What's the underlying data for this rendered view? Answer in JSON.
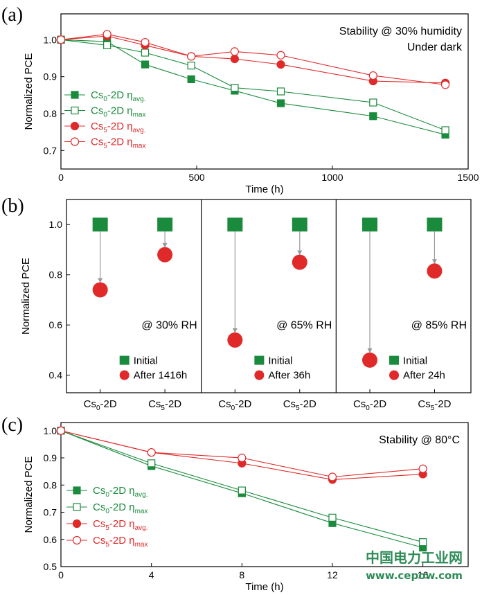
{
  "colors": {
    "green": "#1a8a3c",
    "red": "#e02a2a",
    "axis": "#000000",
    "arrow": "#9a9a9a",
    "watermark": "#2e8b57"
  },
  "watermark": {
    "line1": "中国电力工业网",
    "line2": "www.cepow.com"
  },
  "chart_data": [
    {
      "id": "a",
      "type": "line",
      "panel_label": "(a)",
      "title_lines": [
        "Stability @ 30% humidity",
        "Under dark"
      ],
      "xlabel": "Time (h)",
      "ylabel": "Normalized PCE",
      "xlim": [
        0,
        1500
      ],
      "ylim": [
        0.65,
        1.07
      ],
      "xticks": [
        0,
        500,
        1000,
        1500
      ],
      "yticks": [
        0.7,
        0.8,
        0.9,
        1.0
      ],
      "yticklabels": [
        "0.7",
        "0.8",
        "0.9",
        "1.0"
      ],
      "legend": {
        "position": "left-center"
      },
      "series": [
        {
          "name": "Cs0-2D ηavg.",
          "parts": [
            "Cs",
            "0",
            "-2D η",
            "avg."
          ],
          "color": "green",
          "marker": "square-filled",
          "x": [
            0,
            170,
            310,
            480,
            640,
            810,
            1150,
            1416
          ],
          "y": [
            1.0,
            0.995,
            0.933,
            0.893,
            0.862,
            0.828,
            0.793,
            0.743
          ]
        },
        {
          "name": "Cs0-2D ηmax",
          "parts": [
            "Cs",
            "0",
            "-2D η",
            "max"
          ],
          "color": "green",
          "marker": "square-open",
          "x": [
            0,
            170,
            310,
            480,
            640,
            810,
            1150,
            1416
          ],
          "y": [
            1.0,
            0.985,
            0.965,
            0.93,
            0.87,
            0.86,
            0.83,
            0.755
          ]
        },
        {
          "name": "Cs5-2D ηavg.",
          "parts": [
            "Cs",
            "5",
            "-2D η",
            "avg."
          ],
          "color": "red",
          "marker": "circle-filled",
          "x": [
            0,
            170,
            310,
            480,
            640,
            810,
            1150,
            1416
          ],
          "y": [
            1.0,
            1.01,
            0.985,
            0.955,
            0.948,
            0.933,
            0.888,
            0.883
          ]
        },
        {
          "name": "Cs5-2D ηmax",
          "parts": [
            "Cs",
            "5",
            "-2D η",
            "max"
          ],
          "color": "red",
          "marker": "circle-open",
          "x": [
            0,
            170,
            310,
            480,
            640,
            810,
            1150,
            1416
          ],
          "y": [
            1.0,
            1.015,
            0.993,
            0.955,
            0.968,
            0.958,
            0.903,
            0.878
          ]
        }
      ]
    },
    {
      "id": "b",
      "type": "scatter",
      "panel_label": "(b)",
      "ylabel": "Normalized PCE",
      "ylim": [
        0.33,
        1.1
      ],
      "yticks": [
        0.4,
        0.6,
        0.8,
        1.0
      ],
      "yticklabels": [
        "0.4",
        "0.6",
        "0.8",
        "1.0"
      ],
      "subpanels": [
        {
          "condition": "@ 30% RH",
          "legend_initial": "Initial",
          "legend_after": "After 1416h",
          "categories": [
            {
              "name": "Cs0-2D",
              "parts": [
                "Cs",
                "0",
                "-2D"
              ],
              "initial": 1.0,
              "after": 0.74
            },
            {
              "name": "Cs5-2D",
              "parts": [
                "Cs",
                "5",
                "-2D"
              ],
              "initial": 1.0,
              "after": 0.88
            }
          ]
        },
        {
          "condition": "@ 65% RH",
          "legend_initial": "Initial",
          "legend_after": "After 36h",
          "categories": [
            {
              "name": "Cs0-2D",
              "parts": [
                "Cs",
                "0",
                "-2D"
              ],
              "initial": 1.0,
              "after": 0.54
            },
            {
              "name": "Cs5-2D",
              "parts": [
                "Cs",
                "5",
                "-2D"
              ],
              "initial": 1.0,
              "after": 0.85
            }
          ]
        },
        {
          "condition": "@ 85% RH",
          "legend_initial": "Initial",
          "legend_after": "After 24h",
          "categories": [
            {
              "name": "Cs0-2D",
              "parts": [
                "Cs",
                "0",
                "-2D"
              ],
              "initial": 1.0,
              "after": 0.46
            },
            {
              "name": "Cs5-2D",
              "parts": [
                "Cs",
                "5",
                "-2D"
              ],
              "initial": 1.0,
              "after": 0.815
            }
          ]
        }
      ]
    },
    {
      "id": "c",
      "type": "line",
      "panel_label": "(c)",
      "title_lines": [
        "Stability @ 80°C"
      ],
      "xlabel": "Time (h)",
      "ylabel": "Normalized PCE",
      "xlim": [
        0,
        18
      ],
      "ylim": [
        0.5,
        1.03
      ],
      "xticks": [
        0,
        4,
        8,
        12,
        16
      ],
      "yticks": [
        0.5,
        0.6,
        0.7,
        0.8,
        0.9,
        1.0
      ],
      "yticklabels": [
        "0.5",
        "0.6",
        "0.7",
        "0.8",
        "0.9",
        "1.0"
      ],
      "legend": {
        "position": "bottom-left"
      },
      "series": [
        {
          "name": "Cs0-2D ηavg.",
          "parts": [
            "Cs",
            "0",
            "-2D η",
            "avg."
          ],
          "color": "green",
          "marker": "square-filled",
          "x": [
            0,
            4,
            8,
            12,
            16
          ],
          "y": [
            1.0,
            0.87,
            0.77,
            0.66,
            0.57
          ]
        },
        {
          "name": "Cs0-2D ηmax",
          "parts": [
            "Cs",
            "0",
            "-2D η",
            "max"
          ],
          "color": "green",
          "marker": "square-open",
          "x": [
            0,
            4,
            8,
            12,
            16
          ],
          "y": [
            1.0,
            0.88,
            0.78,
            0.68,
            0.59
          ]
        },
        {
          "name": "Cs5-2D ηavg.",
          "parts": [
            "Cs",
            "5",
            "-2D η",
            "avg."
          ],
          "color": "red",
          "marker": "circle-filled",
          "x": [
            0,
            4,
            8,
            12,
            16
          ],
          "y": [
            1.0,
            0.92,
            0.88,
            0.82,
            0.84
          ]
        },
        {
          "name": "Cs5-2D ηmax",
          "parts": [
            "Cs",
            "5",
            "-2D η",
            "max"
          ],
          "color": "red",
          "marker": "circle-open",
          "x": [
            0,
            4,
            8,
            12,
            16
          ],
          "y": [
            1.0,
            0.92,
            0.9,
            0.83,
            0.86
          ]
        }
      ]
    }
  ]
}
